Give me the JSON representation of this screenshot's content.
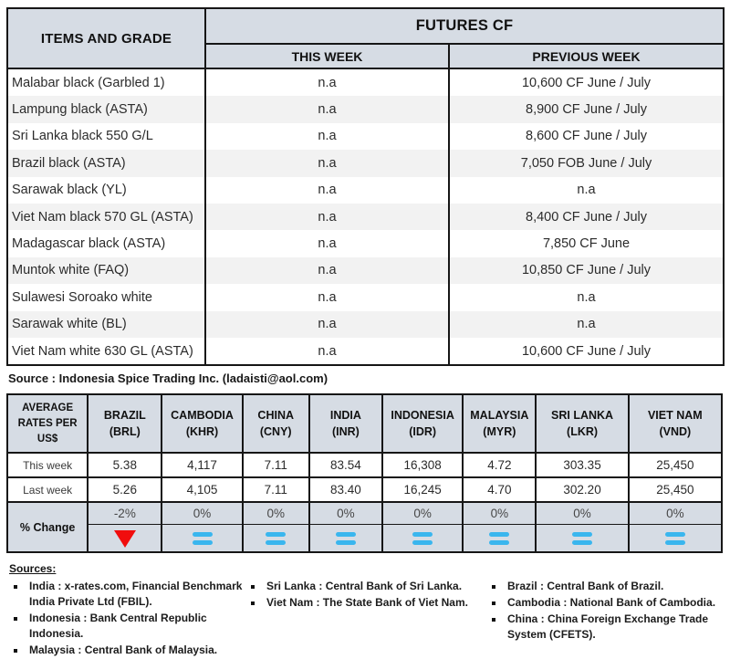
{
  "futures": {
    "header": {
      "items": "ITEMS AND GRADE",
      "title": "FUTURES CF",
      "this_week": "THIS WEEK",
      "previous_week": "PREVIOUS WEEK"
    },
    "rows": [
      {
        "item": "Malabar black (Garbled 1)",
        "this_week": "n.a",
        "previous_week": "10,600 CF June / July"
      },
      {
        "item": "Lampung black (ASTA)",
        "this_week": "n.a",
        "previous_week": "8,900 CF June / July"
      },
      {
        "item": "Sri Lanka black 550 G/L",
        "this_week": "n.a",
        "previous_week": "8,600 CF June / July"
      },
      {
        "item": "Brazil black (ASTA)",
        "this_week": "n.a",
        "previous_week": "7,050 FOB June / July"
      },
      {
        "item": "Sarawak black (YL)",
        "this_week": "n.a",
        "previous_week": "n.a"
      },
      {
        "item": "Viet Nam black 570 GL (ASTA)",
        "this_week": "n.a",
        "previous_week": "8,400 CF June / July"
      },
      {
        "item": "Madagascar black (ASTA)",
        "this_week": "n.a",
        "previous_week": "7,850 CF June"
      },
      {
        "item": "Muntok white (FAQ)",
        "this_week": "n.a",
        "previous_week": "10,850 CF June / July"
      },
      {
        "item": "Sulawesi Soroako white",
        "this_week": "n.a",
        "previous_week": "n.a"
      },
      {
        "item": "Sarawak  white (BL)",
        "this_week": "n.a",
        "previous_week": "n.a"
      },
      {
        "item": "Viet Nam white 630 GL (ASTA)",
        "this_week": "n.a",
        "previous_week": "10,600 CF June / July"
      }
    ],
    "source": "Source : Indonesia Spice Trading Inc. (ladaisti@aol.com)"
  },
  "rates": {
    "corner": "AVERAGE RATES PER US$",
    "row_labels": {
      "this_week": "This week",
      "last_week": "Last week",
      "pct_change": "% Change"
    },
    "columns": [
      {
        "country": "BRAZIL",
        "currency": "(BRL)",
        "this_week": "5.38",
        "last_week": "5.26",
        "pct_change": "-2%",
        "trend": "down"
      },
      {
        "country": "CAMBODIA",
        "currency": "(KHR)",
        "this_week": "4,117",
        "last_week": "4,105",
        "pct_change": "0%",
        "trend": "equal"
      },
      {
        "country": "CHINA",
        "currency": "(CNY)",
        "this_week": "7.11",
        "last_week": "7.11",
        "pct_change": "0%",
        "trend": "equal"
      },
      {
        "country": "INDIA",
        "currency": "(INR)",
        "this_week": "83.54",
        "last_week": "83.40",
        "pct_change": "0%",
        "trend": "equal"
      },
      {
        "country": "INDONESIA",
        "currency": "(IDR)",
        "this_week": "16,308",
        "last_week": "16,245",
        "pct_change": "0%",
        "trend": "equal"
      },
      {
        "country": "MALAYSIA",
        "currency": "(MYR)",
        "this_week": "4.72",
        "last_week": "4.70",
        "pct_change": "0%",
        "trend": "equal"
      },
      {
        "country": "SRI LANKA",
        "currency": "(LKR)",
        "this_week": "303.35",
        "last_week": "302.20",
        "pct_change": "0%",
        "trend": "equal"
      },
      {
        "country": "VIET NAM",
        "currency": "(VND)",
        "this_week": "25,450",
        "last_week": "25,450",
        "pct_change": "0%",
        "trend": "equal"
      }
    ],
    "icons": {
      "down": "red-down-triangle-icon",
      "equal": "blue-equals-icon"
    }
  },
  "sources": {
    "title": "Sources:",
    "columns": [
      [
        "India : x-rates.com, Financial Benchmark India Private Ltd (FBIL).",
        "Indonesia : Bank Central Republic Indonesia.",
        "Malaysia : Central Bank of Malaysia."
      ],
      [
        "Sri Lanka : Central Bank of Sri Lanka.",
        "Viet Nam : The State Bank of Viet Nam."
      ],
      [
        "Brazil :  Central Bank of Brazil.",
        "Cambodia : National Bank of Cambodia.",
        "China : China Foreign Exchange Trade System (CFETS)."
      ]
    ]
  },
  "colors": {
    "header_bg": "#d6dce4",
    "row_alt_bg": "#f2f2f2",
    "down_red": "#f10d0d",
    "equal_blue": "#3ab6ee"
  }
}
